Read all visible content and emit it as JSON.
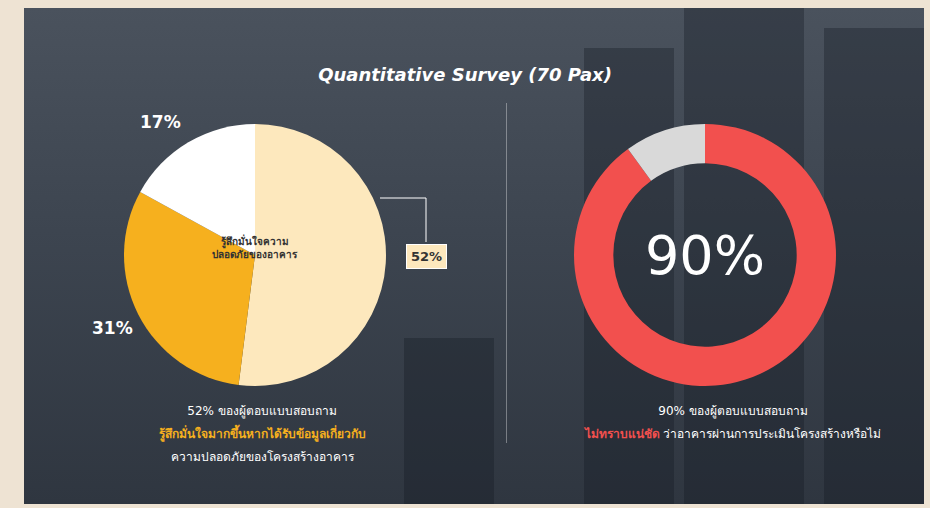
{
  "title": "Quantitative Survey (70 Pax)",
  "chart_data": [
    {
      "type": "pie",
      "values": [
        52,
        31,
        17
      ],
      "value_labels": [
        "52%",
        "31%",
        "17%"
      ],
      "colors": [
        "#fde8bd",
        "#f6b01e",
        "#ffffff"
      ],
      "data_labels": true,
      "annotation": [
        "รู้สึกมั่นใจความ",
        "ปลอดภัยของอาคาร"
      ],
      "caption": [
        [
          {
            "text": "52% ของผู้ตอบแบบสอบถาม"
          }
        ],
        [
          {
            "text": "รู้สึกมั่นใจมากขึ้นหากได้รับข้อมูลเกี่ยวกับ",
            "color": "#f6b01e"
          }
        ],
        [
          {
            "text": "ความปลอดภัยของโครงสร้างอาคาร"
          }
        ]
      ]
    },
    {
      "type": "donut",
      "values": [
        90,
        10
      ],
      "value_labels": [
        "90%",
        null
      ],
      "colors": [
        "#f2504e",
        "#d9d9d9"
      ],
      "data_labels": true,
      "caption": [
        [
          {
            "text": "90% ของผู้ตอบแบบสอบถาม"
          }
        ],
        [
          {
            "text": "ไม่ทราบแน่ชัด",
            "color": "#f2504e"
          },
          {
            "text": " ว่าอาคารผ่านการประเมินโครงสร้างหรือไม่"
          }
        ]
      ]
    }
  ]
}
